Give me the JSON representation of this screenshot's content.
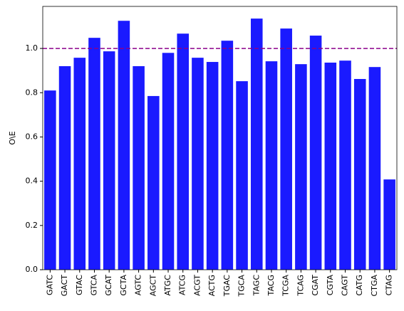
{
  "chart_data": {
    "type": "bar",
    "ylabel": "O\\E",
    "categories": [
      "GATC",
      "GACT",
      "GTAC",
      "GTCA",
      "GCAT",
      "GCTA",
      "AGTC",
      "AGCT",
      "ATGC",
      "ATCG",
      "ACGT",
      "ACTG",
      "TGAC",
      "TGCA",
      "TAGC",
      "TACG",
      "TCGA",
      "TCAG",
      "CGAT",
      "CGTA",
      "CAGT",
      "CATG",
      "CTGA",
      "CTAG"
    ],
    "values": [
      0.81,
      0.92,
      0.958,
      1.048,
      0.987,
      1.125,
      0.92,
      0.785,
      0.98,
      1.067,
      0.958,
      0.939,
      1.035,
      0.852,
      1.135,
      0.942,
      1.09,
      0.929,
      1.058,
      0.936,
      0.945,
      0.862,
      0.916,
      0.408
    ],
    "color": "#1a1aff",
    "ylim": [
      0,
      1.19
    ],
    "yticks": [
      {
        "value": 0,
        "label": "0.0"
      },
      0.2,
      0.4,
      0.6,
      0.8,
      {
        "value": 1,
        "label": "1.0"
      }
    ],
    "hline": {
      "value": 1,
      "color": "#8b008b"
    }
  }
}
